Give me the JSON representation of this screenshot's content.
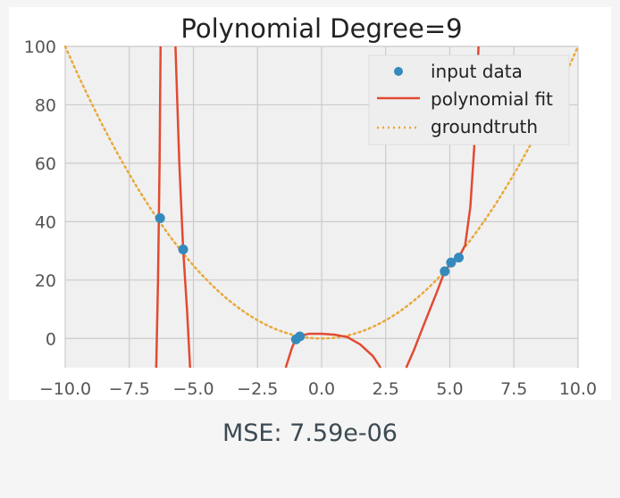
{
  "chart_data": {
    "type": "line",
    "title": "Polynomial Degree=9",
    "xlabel": "",
    "ylabel": "",
    "xlim": [
      -10,
      10
    ],
    "ylim": [
      -10,
      100
    ],
    "xticks": [
      -10.0,
      -7.5,
      -5.0,
      -2.5,
      0.0,
      2.5,
      5.0,
      7.5,
      10.0
    ],
    "xtick_labels": [
      "−10.0",
      "−7.5",
      "−5.0",
      "−2.5",
      "0.0",
      "2.5",
      "5.0",
      "7.5",
      "10.0"
    ],
    "yticks": [
      0,
      20,
      40,
      60,
      80,
      100
    ],
    "ytick_labels": [
      "0",
      "20",
      "40",
      "60",
      "80",
      "100"
    ],
    "grid": true,
    "legend_position": "top-right",
    "series": [
      {
        "name": "input data",
        "kind": "scatter",
        "color": "#348abd",
        "points": [
          [
            -6.3,
            41.2
          ],
          [
            -5.4,
            30.5
          ],
          [
            -1.0,
            -0.3
          ],
          [
            -0.85,
            0.7
          ],
          [
            4.8,
            23.0
          ],
          [
            5.05,
            26.0
          ],
          [
            5.35,
            27.7
          ]
        ]
      },
      {
        "name": "polynomial fit",
        "kind": "line",
        "color": "#e24a33",
        "points": [
          [
            -6.45,
            -10
          ],
          [
            -6.38,
            20
          ],
          [
            -6.32,
            60
          ],
          [
            -6.28,
            100
          ],
          [
            -5.7,
            100
          ],
          [
            -5.55,
            60
          ],
          [
            -5.4,
            30.5
          ],
          [
            -5.25,
            10
          ],
          [
            -5.13,
            -10
          ],
          [
            -1.4,
            -10
          ],
          [
            -1.15,
            -3
          ],
          [
            -1.0,
            -0.3
          ],
          [
            -0.8,
            1
          ],
          [
            -0.5,
            1.6
          ],
          [
            0.0,
            1.6
          ],
          [
            0.5,
            1.3
          ],
          [
            1.0,
            0.5
          ],
          [
            1.5,
            -2
          ],
          [
            2.0,
            -6
          ],
          [
            2.3,
            -10
          ],
          [
            3.3,
            -10
          ],
          [
            3.6,
            -4
          ],
          [
            4.0,
            5
          ],
          [
            4.5,
            16
          ],
          [
            4.8,
            23
          ],
          [
            5.05,
            26
          ],
          [
            5.35,
            27.7
          ],
          [
            5.6,
            32
          ],
          [
            5.8,
            45
          ],
          [
            5.95,
            65
          ],
          [
            6.05,
            85
          ],
          [
            6.12,
            100
          ]
        ],
        "segments": [
          [
            0,
            4
          ],
          [
            4,
            9
          ],
          [
            9,
            20
          ],
          [
            20,
            32
          ]
        ]
      },
      {
        "name": "groundtruth",
        "kind": "line",
        "style": "dotted",
        "color": "#e8a93a",
        "function": "x^2"
      }
    ]
  },
  "caption": {
    "mse": "MSE: 7.59e-06"
  }
}
